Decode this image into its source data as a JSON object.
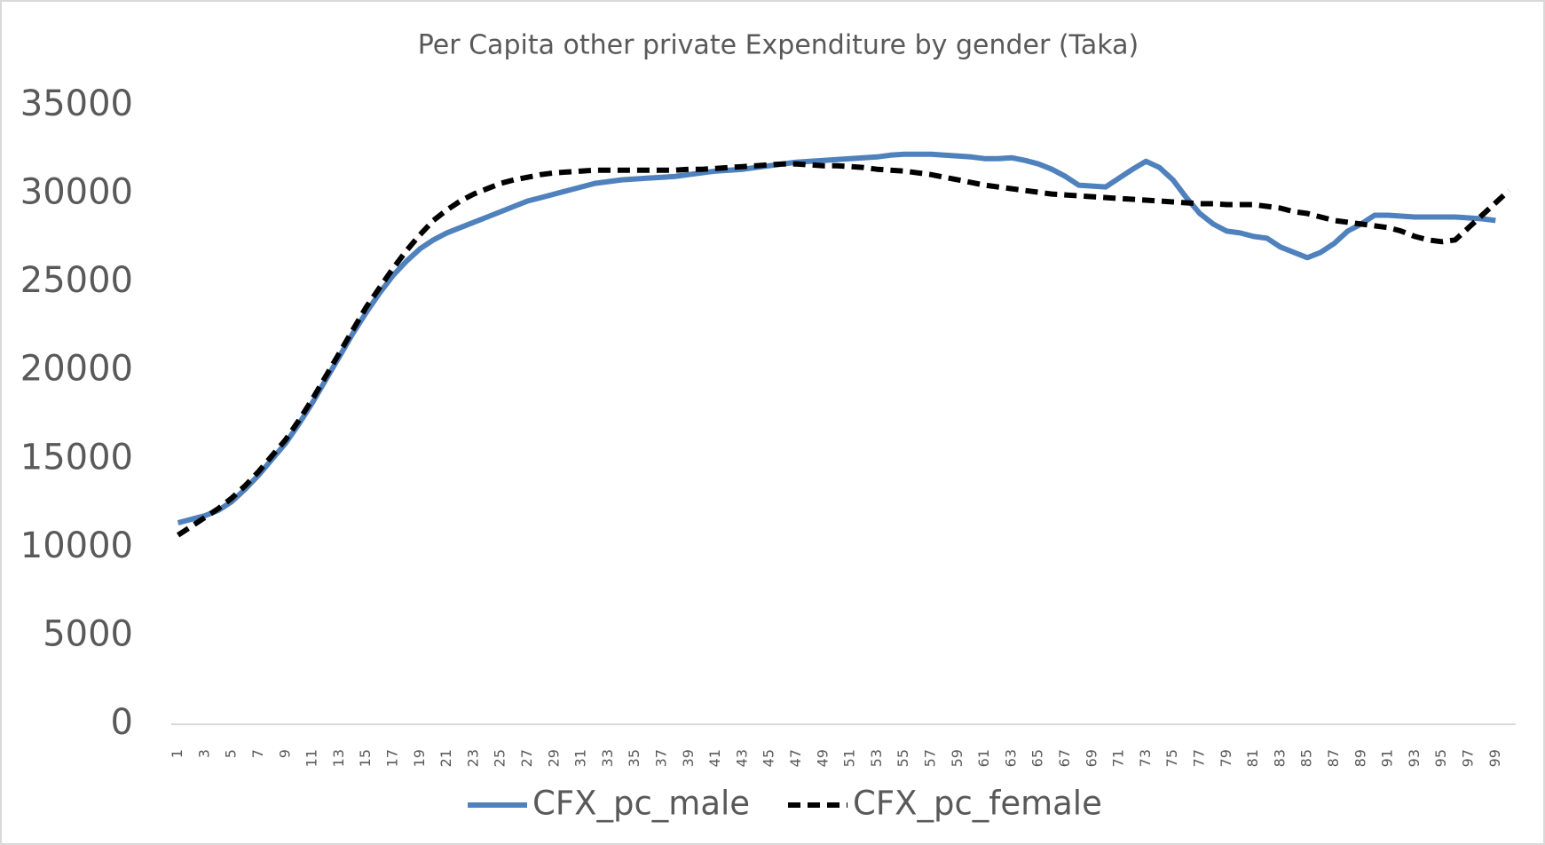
{
  "chart_data": {
    "type": "line",
    "title": "Per Capita other private Expenditure by gender (Taka)",
    "categories": [
      1,
      null,
      3,
      null,
      5,
      null,
      7,
      null,
      9,
      null,
      11,
      null,
      13,
      null,
      15,
      null,
      17,
      null,
      19,
      null,
      21,
      null,
      23,
      null,
      25,
      null,
      27,
      null,
      29,
      null,
      31,
      null,
      33,
      null,
      35,
      null,
      37,
      null,
      39,
      null,
      41,
      null,
      43,
      null,
      45,
      null,
      47,
      null,
      49,
      null,
      51,
      null,
      53,
      null,
      55,
      null,
      57,
      null,
      59,
      null,
      61,
      null,
      63,
      null,
      65,
      null,
      67,
      null,
      69,
      null,
      71,
      null,
      73,
      null,
      75,
      null,
      77,
      null,
      79,
      null,
      81,
      null,
      83,
      null,
      85,
      null,
      87,
      null,
      89,
      null,
      91,
      null,
      93,
      null,
      95,
      null,
      97,
      null,
      99,
      null
    ],
    "series": [
      {
        "name": "CFX_pc_male",
        "color": "#4f81bd",
        "dash": false,
        "values": [
          11400,
          11600,
          11800,
          12100,
          12600,
          13300,
          14100,
          15000,
          15900,
          17000,
          18200,
          19500,
          20800,
          22100,
          23300,
          24400,
          25400,
          26200,
          26900,
          27400,
          27800,
          28100,
          28400,
          28700,
          29000,
          29300,
          29600,
          29800,
          30000,
          30200,
          30400,
          30600,
          30700,
          30800,
          30850,
          30900,
          30950,
          31000,
          31100,
          31200,
          31300,
          31350,
          31400,
          31500,
          31600,
          31700,
          31800,
          31850,
          31900,
          31950,
          32000,
          32050,
          32100,
          32200,
          32250,
          32250,
          32250,
          32200,
          32150,
          32100,
          32000,
          32000,
          32050,
          31900,
          31700,
          31400,
          31000,
          30500,
          30450,
          30400,
          30900,
          31400,
          31850,
          31500,
          30800,
          29800,
          28900,
          28300,
          27900,
          27800,
          27600,
          27500,
          27000,
          26700,
          26400,
          26700,
          27200,
          27900,
          28300,
          28800,
          28800,
          28750,
          28700,
          28700,
          28700,
          28700,
          28650,
          28600,
          28500,
          null
        ]
      },
      {
        "name": "CFX_pc_female",
        "color": "#000000",
        "dash": true,
        "values": [
          10700,
          11200,
          11700,
          12200,
          12800,
          13500,
          14300,
          15200,
          16100,
          17200,
          18400,
          19700,
          21000,
          22300,
          23600,
          24700,
          25800,
          26800,
          27700,
          28500,
          29100,
          29600,
          30000,
          30300,
          30600,
          30800,
          30950,
          31100,
          31200,
          31250,
          31300,
          31350,
          31350,
          31350,
          31350,
          31350,
          31350,
          31350,
          31400,
          31400,
          31450,
          31500,
          31550,
          31600,
          31650,
          31700,
          31700,
          31650,
          31600,
          31600,
          31550,
          31500,
          31400,
          31350,
          31300,
          31200,
          31100,
          30950,
          30800,
          30650,
          30500,
          30400,
          30300,
          30200,
          30100,
          30000,
          29950,
          29900,
          29850,
          29800,
          29750,
          29700,
          29650,
          29600,
          29550,
          29500,
          29450,
          29450,
          29400,
          29400,
          29400,
          29300,
          29200,
          29000,
          28900,
          28700,
          28500,
          28400,
          28300,
          28200,
          28100,
          27900,
          27600,
          27400,
          27300,
          27400,
          28100,
          28800,
          29500,
          30200
        ]
      }
    ],
    "ylim": [
      0,
      35000
    ],
    "yticks": [
      0,
      5000,
      10000,
      15000,
      20000,
      25000,
      30000,
      35000
    ],
    "grid": false,
    "legend": "bottom"
  }
}
